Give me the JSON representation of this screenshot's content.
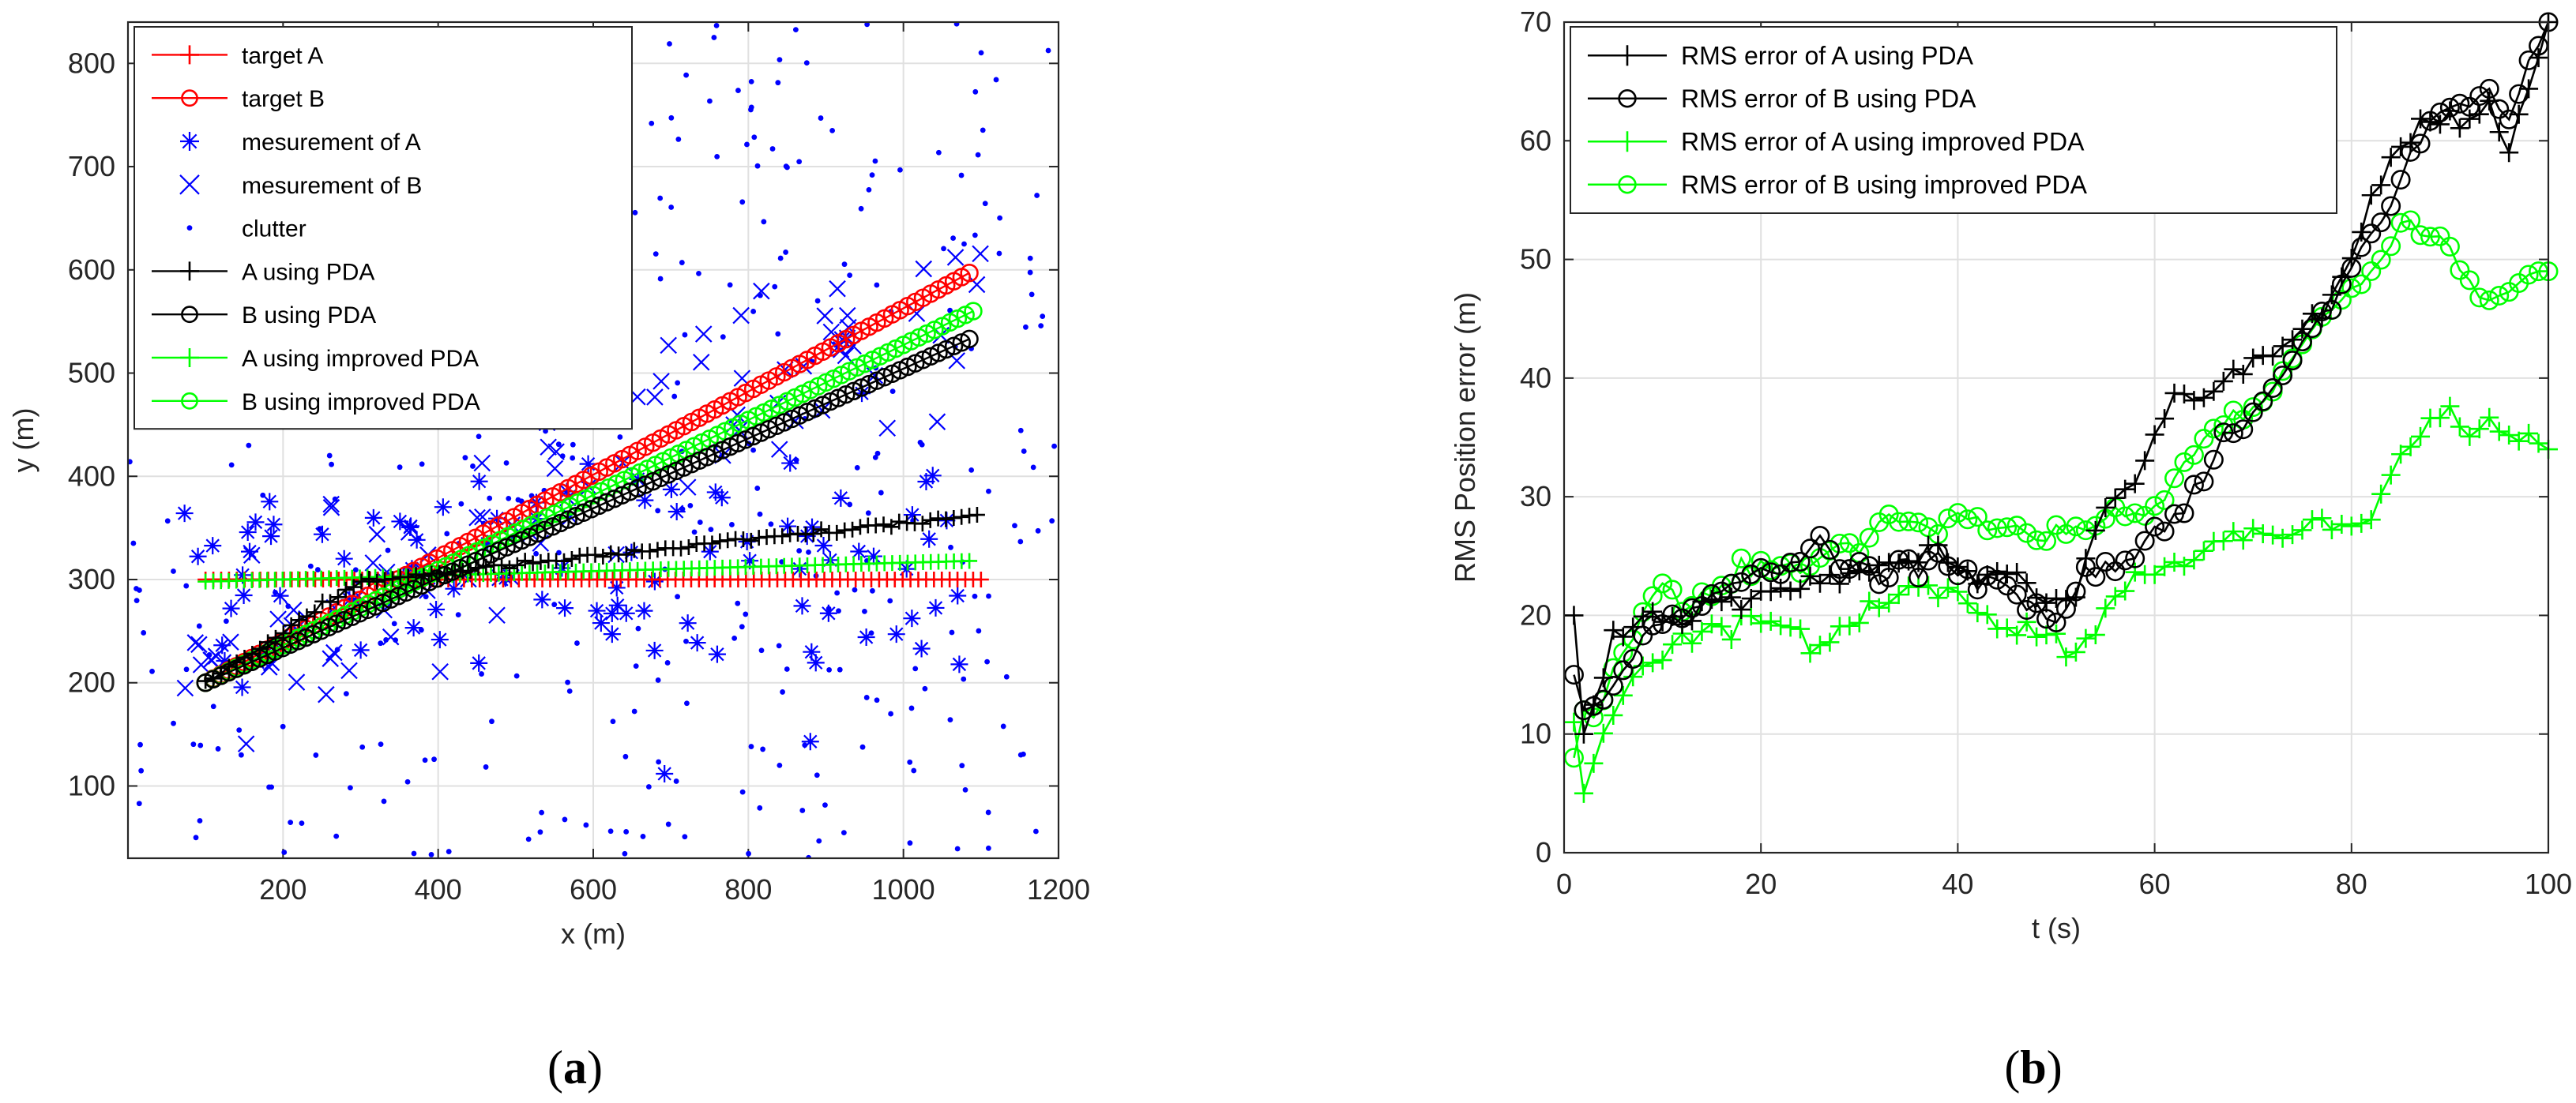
{
  "panels": {
    "a": {
      "label_open": "(",
      "label_letter": "a",
      "label_close": ")"
    },
    "b": {
      "label_open": "(",
      "label_letter": "b",
      "label_close": ")"
    }
  },
  "colors": {
    "red": "#ff0000",
    "blue": "#0000ff",
    "black": "#000000",
    "green": "#00ff00",
    "grid": "#e0e0e0"
  },
  "chart_data": [
    {
      "id": "a",
      "type": "scatter",
      "title": "",
      "xlabel": "x (m)",
      "ylabel": "y (m)",
      "xlim": [
        0,
        1200
      ],
      "ylim": [
        30,
        840
      ],
      "xticks": [
        200,
        400,
        600,
        800,
        1000,
        1200
      ],
      "yticks": [
        100,
        200,
        300,
        400,
        500,
        600,
        700,
        800
      ],
      "grid": true,
      "legend_position": "top-left",
      "series": [
        {
          "name": "target A",
          "color": "#ff0000",
          "marker": "plus",
          "line": true,
          "x_start": 100,
          "x_end": 1100,
          "y_start": 300,
          "y_end": 300,
          "points": 100
        },
        {
          "name": "target B",
          "color": "#ff0000",
          "marker": "circle",
          "line": true,
          "x_start": 100,
          "x_end": 1085,
          "y_start": 200,
          "y_end": 597,
          "points": 100
        },
        {
          "name": "mesurement of A",
          "color": "#0000ff",
          "marker": "asterisk",
          "line": false,
          "x_range": [
            70,
            1100
          ],
          "y_center": 300,
          "y_spread": 65,
          "points": 100
        },
        {
          "name": "mesurement of B",
          "color": "#0000ff",
          "marker": "cross",
          "line": false,
          "x_range": [
            70,
            1100
          ],
          "y_center_start": 190,
          "y_center_end": 590,
          "y_spread": 45,
          "points": 100
        },
        {
          "name": "clutter",
          "color": "#0000ff",
          "marker": "dot",
          "line": false,
          "x_range": [
            0,
            1200
          ],
          "y_range": [
            30,
            840
          ],
          "points": 420
        },
        {
          "name": "A using PDA",
          "color": "#000000",
          "marker": "plus",
          "line": true,
          "x_start": 100,
          "x_end": 1095,
          "y_start": 200,
          "y_end": 362,
          "crosses_at_x": 300,
          "y_at_cross": 298,
          "points": 100
        },
        {
          "name": "B using PDA",
          "color": "#000000",
          "marker": "circle",
          "line": true,
          "x_start": 100,
          "x_end": 1085,
          "y_start": 200,
          "y_end": 533,
          "points": 100
        },
        {
          "name": "A using improved PDA",
          "color": "#00ff00",
          "marker": "plus",
          "line": true,
          "x_start": 100,
          "x_end": 1085,
          "y_start": 298,
          "y_end": 318,
          "points": 100
        },
        {
          "name": "B using improved PDA",
          "color": "#00ff00",
          "marker": "circle",
          "line": true,
          "x_start": 100,
          "x_end": 1090,
          "y_start": 200,
          "y_end": 560,
          "points": 100
        }
      ]
    },
    {
      "id": "b",
      "type": "line",
      "title": "",
      "xlabel": "t (s)",
      "ylabel": "RMS Position error (m)",
      "xlim": [
        0,
        100
      ],
      "ylim": [
        0,
        70
      ],
      "xticks": [
        0,
        20,
        40,
        60,
        80,
        100
      ],
      "yticks": [
        0,
        10,
        20,
        30,
        40,
        50,
        60,
        70
      ],
      "grid": true,
      "legend_position": "top-left",
      "series": [
        {
          "name": "RMS error of A using PDA",
          "color": "#000000",
          "marker": "plus",
          "keyframes": [
            [
              1,
              20
            ],
            [
              2,
              10
            ],
            [
              3,
              13
            ],
            [
              5,
              18
            ],
            [
              8,
              20
            ],
            [
              12,
              20
            ],
            [
              16,
              21
            ],
            [
              20,
              22
            ],
            [
              24,
              22
            ],
            [
              28,
              23
            ],
            [
              32,
              24
            ],
            [
              35,
              25
            ],
            [
              38,
              25
            ],
            [
              40,
              24
            ],
            [
              42,
              23
            ],
            [
              44,
              24
            ],
            [
              46,
              23
            ],
            [
              48,
              22
            ],
            [
              50,
              21
            ],
            [
              52,
              22
            ],
            [
              54,
              27
            ],
            [
              56,
              30
            ],
            [
              58,
              31
            ],
            [
              60,
              35
            ],
            [
              62,
              38
            ],
            [
              64,
              38
            ],
            [
              66,
              39
            ],
            [
              68,
              40
            ],
            [
              70,
              41
            ],
            [
              72,
              42
            ],
            [
              74,
              43
            ],
            [
              76,
              45
            ],
            [
              78,
              47
            ],
            [
              80,
              50
            ],
            [
              82,
              55
            ],
            [
              84,
              58
            ],
            [
              86,
              60
            ],
            [
              88,
              62
            ],
            [
              90,
              62
            ],
            [
              92,
              62
            ],
            [
              94,
              63
            ],
            [
              96,
              59
            ],
            [
              98,
              64
            ],
            [
              100,
              70
            ]
          ]
        },
        {
          "name": "RMS error of B using PDA",
          "color": "#000000",
          "marker": "circle",
          "keyframes": [
            [
              1,
              15
            ],
            [
              2,
              12
            ],
            [
              3,
              13
            ],
            [
              5,
              14
            ],
            [
              8,
              18
            ],
            [
              12,
              20
            ],
            [
              16,
              22
            ],
            [
              18,
              23
            ],
            [
              22,
              24
            ],
            [
              26,
              26
            ],
            [
              30,
              24
            ],
            [
              33,
              23
            ],
            [
              35,
              25
            ],
            [
              38,
              25
            ],
            [
              40,
              24
            ],
            [
              42,
              23
            ],
            [
              44,
              23
            ],
            [
              46,
              22
            ],
            [
              48,
              21
            ],
            [
              50,
              19
            ],
            [
              52,
              22
            ],
            [
              54,
              24
            ],
            [
              56,
              24
            ],
            [
              58,
              25
            ],
            [
              60,
              27
            ],
            [
              62,
              28
            ],
            [
              64,
              30
            ],
            [
              66,
              33
            ],
            [
              68,
              35
            ],
            [
              70,
              37
            ],
            [
              72,
              39
            ],
            [
              74,
              41
            ],
            [
              76,
              44
            ],
            [
              78,
              46
            ],
            [
              80,
              49
            ],
            [
              82,
              52
            ],
            [
              84,
              55
            ],
            [
              86,
              59
            ],
            [
              88,
              61
            ],
            [
              90,
              63
            ],
            [
              92,
              63
            ],
            [
              94,
              64
            ],
            [
              96,
              62
            ],
            [
              98,
              66
            ],
            [
              100,
              70
            ]
          ]
        },
        {
          "name": "RMS error of A using improved PDA",
          "color": "#00ff00",
          "marker": "plus",
          "keyframes": [
            [
              1,
              11
            ],
            [
              2,
              5
            ],
            [
              3,
              8
            ],
            [
              5,
              12
            ],
            [
              8,
              16
            ],
            [
              12,
              18
            ],
            [
              16,
              19
            ],
            [
              20,
              20
            ],
            [
              24,
              18
            ],
            [
              26,
              17
            ],
            [
              28,
              19
            ],
            [
              30,
              20
            ],
            [
              32,
              21
            ],
            [
              34,
              22
            ],
            [
              36,
              23
            ],
            [
              38,
              22
            ],
            [
              40,
              22
            ],
            [
              42,
              20
            ],
            [
              44,
              19
            ],
            [
              46,
              19
            ],
            [
              48,
              19
            ],
            [
              50,
              18
            ],
            [
              52,
              17
            ],
            [
              54,
              19
            ],
            [
              56,
              21
            ],
            [
              58,
              23
            ],
            [
              60,
              24
            ],
            [
              62,
              25
            ],
            [
              64,
              25
            ],
            [
              66,
              26
            ],
            [
              68,
              26
            ],
            [
              70,
              27
            ],
            [
              72,
              27
            ],
            [
              74,
              27
            ],
            [
              76,
              28
            ],
            [
              78,
              28
            ],
            [
              80,
              28
            ],
            [
              82,
              29
            ],
            [
              84,
              32
            ],
            [
              86,
              34
            ],
            [
              88,
              36
            ],
            [
              90,
              37
            ],
            [
              92,
              36
            ],
            [
              94,
              36
            ],
            [
              96,
              35
            ],
            [
              98,
              35
            ],
            [
              100,
              34
            ]
          ]
        },
        {
          "name": "RMS error of B using improved PDA",
          "color": "#00ff00",
          "marker": "circle",
          "keyframes": [
            [
              1,
              8
            ],
            [
              2,
              12
            ],
            [
              3,
              11
            ],
            [
              5,
              15
            ],
            [
              8,
              20
            ],
            [
              10,
              22
            ],
            [
              12,
              21
            ],
            [
              14,
              21
            ],
            [
              16,
              22
            ],
            [
              18,
              24
            ],
            [
              20,
              25
            ],
            [
              22,
              24
            ],
            [
              24,
              24
            ],
            [
              26,
              25
            ],
            [
              28,
              26
            ],
            [
              30,
              26
            ],
            [
              32,
              28
            ],
            [
              34,
              28
            ],
            [
              36,
              28
            ],
            [
              38,
              27
            ],
            [
              40,
              28
            ],
            [
              42,
              28
            ],
            [
              44,
              27
            ],
            [
              46,
              27
            ],
            [
              48,
              26
            ],
            [
              50,
              27
            ],
            [
              52,
              27
            ],
            [
              54,
              28
            ],
            [
              56,
              28
            ],
            [
              58,
              28
            ],
            [
              60,
              29
            ],
            [
              62,
              31
            ],
            [
              64,
              34
            ],
            [
              66,
              36
            ],
            [
              68,
              37
            ],
            [
              70,
              38
            ],
            [
              72,
              40
            ],
            [
              74,
              42
            ],
            [
              76,
              44
            ],
            [
              78,
              46
            ],
            [
              80,
              47
            ],
            [
              82,
              49
            ],
            [
              84,
              51
            ],
            [
              86,
              53
            ],
            [
              88,
              52
            ],
            [
              90,
              51
            ],
            [
              92,
              48
            ],
            [
              94,
              47
            ],
            [
              96,
              47
            ],
            [
              98,
              49
            ],
            [
              100,
              49
            ]
          ]
        }
      ]
    }
  ]
}
